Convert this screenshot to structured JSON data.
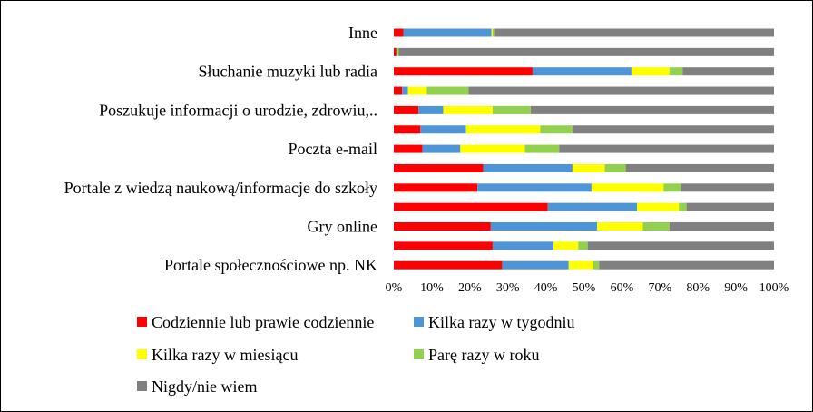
{
  "chart_data": {
    "type": "bar",
    "orientation": "horizontal",
    "stacked": "percent",
    "title": "",
    "xlabel": "",
    "ylabel": "",
    "xlim": [
      0,
      100
    ],
    "grid": false,
    "legend_position": "bottom",
    "x_ticks": [
      "0%",
      "10%",
      "20%",
      "30%",
      "40%",
      "50%",
      "60%",
      "70%",
      "80%",
      "90%",
      "100%"
    ],
    "categories": [
      "Inne",
      "",
      "Słuchanie muzyki lub radia",
      "",
      "Poszukuje informacji o urodzie, zdrowiu,..",
      "",
      "Poczta e-mail",
      "",
      "Portale z wiedzą naukową/informacje do szkoły",
      "",
      "Gry online",
      "",
      "Portale społecznościowe np. NK"
    ],
    "series": [
      {
        "name": "Codziennie lub prawie codziennie",
        "color": "#ff0000",
        "values": [
          2.5,
          0.6,
          36.5,
          2.2,
          6.5,
          7.0,
          7.5,
          23.5,
          22.0,
          40.5,
          25.5,
          26.0,
          28.5
        ]
      },
      {
        "name": "Kilka razy  w tygodniu",
        "color": "#4f94d4",
        "values": [
          23.2,
          0.2,
          26.0,
          1.5,
          6.5,
          12.0,
          10.0,
          23.5,
          30.0,
          23.5,
          28.0,
          16.0,
          17.5
        ]
      },
      {
        "name": "Kilka razy  w miesiącu",
        "color": "#ffff00",
        "values": [
          0.3,
          0.2,
          10.0,
          5.0,
          13.0,
          19.5,
          17.0,
          8.5,
          19.0,
          11.0,
          12.0,
          6.5,
          6.5
        ]
      },
      {
        "name": "Parę razy w roku",
        "color": "#92d050",
        "values": [
          0.4,
          0.3,
          3.5,
          11.0,
          10.0,
          8.5,
          9.0,
          5.5,
          4.5,
          2.0,
          7.0,
          2.5,
          1.5
        ]
      },
      {
        "name": "Nigdy/nie wiem",
        "color": "#808080",
        "values": [
          73.6,
          98.7,
          24.0,
          80.3,
          64.0,
          53.0,
          56.5,
          39.0,
          24.5,
          23.0,
          27.5,
          49.0,
          46.0
        ]
      }
    ]
  }
}
